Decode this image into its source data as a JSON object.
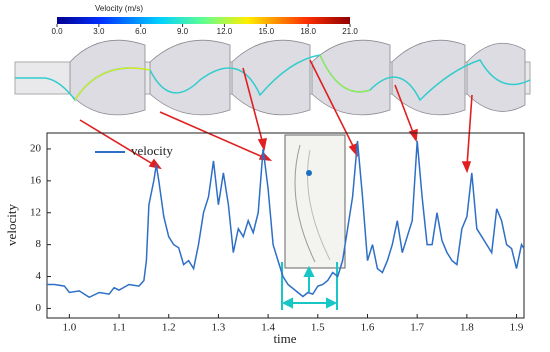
{
  "chart_data": {
    "type": "line",
    "xlabel": "time",
    "ylabel": "velocity",
    "xlim": [
      0.955,
      1.915
    ],
    "ylim": [
      -1.2,
      22
    ],
    "xticks": [
      {
        "value": 1.0,
        "label": "1.0"
      },
      {
        "value": 1.1,
        "label": "1.1"
      },
      {
        "value": 1.2,
        "label": "1.2"
      },
      {
        "value": 1.3,
        "label": "1.3"
      },
      {
        "value": 1.4,
        "label": "1.4"
      },
      {
        "value": 1.5,
        "label": "1.5"
      },
      {
        "value": 1.6,
        "label": "1.6"
      },
      {
        "value": 1.7,
        "label": "1.7"
      },
      {
        "value": 1.8,
        "label": "1.8"
      },
      {
        "value": 1.9,
        "label": "1.9"
      }
    ],
    "yticks": [
      0,
      4,
      8,
      12,
      16,
      20
    ],
    "grid": false,
    "legend": "upper left",
    "colorbar": {
      "title": "Velocity (m/s)",
      "lim": [
        0,
        21
      ],
      "ticks": [
        {
          "value": 0,
          "label": "0.0"
        },
        {
          "value": 3,
          "label": "3.0"
        },
        {
          "value": 6,
          "label": "6.0"
        },
        {
          "value": 9,
          "label": "9.0"
        },
        {
          "value": 12,
          "label": "12.0"
        },
        {
          "value": 15,
          "label": "15.0"
        },
        {
          "value": 18,
          "label": "18.0"
        },
        {
          "value": 21,
          "label": "21.0"
        }
      ]
    },
    "series": [
      {
        "name": "velocity",
        "color": "#2e6fc6",
        "x": [
          0.955,
          0.97,
          0.99,
          1.0,
          1.02,
          1.04,
          1.06,
          1.08,
          1.09,
          1.1,
          1.12,
          1.14,
          1.15,
          1.155,
          1.16,
          1.17,
          1.175,
          1.18,
          1.19,
          1.2,
          1.21,
          1.22,
          1.23,
          1.24,
          1.25,
          1.26,
          1.27,
          1.28,
          1.29,
          1.3,
          1.31,
          1.32,
          1.33,
          1.34,
          1.35,
          1.36,
          1.37,
          1.38,
          1.39,
          1.4,
          1.41,
          1.42,
          1.43,
          1.44,
          1.45,
          1.46,
          1.47,
          1.48,
          1.49,
          1.5,
          1.51,
          1.52,
          1.53,
          1.54,
          1.55,
          1.56,
          1.57,
          1.58,
          1.59,
          1.6,
          1.61,
          1.62,
          1.63,
          1.64,
          1.65,
          1.66,
          1.67,
          1.68,
          1.69,
          1.7,
          1.71,
          1.72,
          1.73,
          1.74,
          1.75,
          1.76,
          1.77,
          1.78,
          1.79,
          1.8,
          1.81,
          1.82,
          1.83,
          1.84,
          1.85,
          1.86,
          1.87,
          1.88,
          1.89,
          1.9,
          1.91,
          1.915
        ],
        "values": [
          3,
          3,
          2.8,
          2,
          2.2,
          1.4,
          2,
          1.8,
          2.6,
          2.3,
          3,
          2.8,
          3.5,
          6,
          13,
          16,
          18,
          16,
          11.5,
          9,
          8,
          7.6,
          5.5,
          6,
          5,
          8,
          12,
          14,
          18.5,
          13,
          17,
          13,
          7,
          10,
          9,
          11,
          9.5,
          12,
          20,
          15,
          8,
          6,
          4,
          3,
          2.5,
          2,
          1.5,
          2,
          1.8,
          2.8,
          3,
          3.5,
          4.5,
          4,
          6,
          10,
          14,
          21,
          14,
          6,
          8,
          5,
          4.5,
          6,
          8,
          11,
          7,
          9,
          11,
          21,
          14,
          8,
          8,
          12,
          8.5,
          7,
          6,
          5.5,
          10,
          11.5,
          17,
          10,
          9,
          8,
          7,
          12.5,
          11,
          8,
          7.5,
          5,
          8,
          7.5
        ]
      }
    ]
  }
}
